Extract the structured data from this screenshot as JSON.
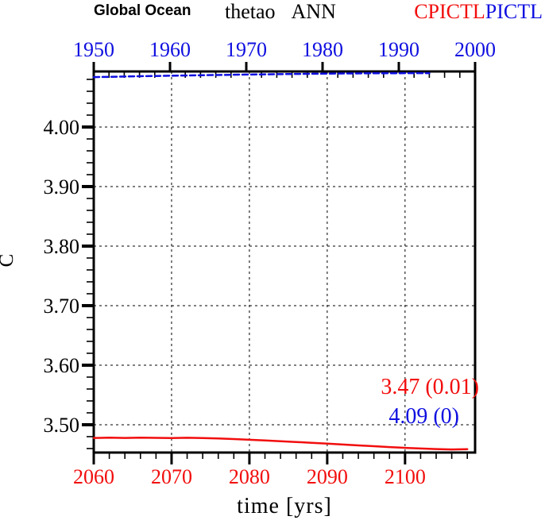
{
  "header": {
    "dataset_label": "Global Ocean",
    "variable": "thetao",
    "season": "ANN",
    "series_red": "CPICTL",
    "series_blue": "PICTL"
  },
  "axes": {
    "x_title": "time [yrs]",
    "y_title": "C"
  },
  "annotations": {
    "red_summary": "3.47 (0.01)",
    "blue_summary": "4.09 (0)"
  },
  "colors": {
    "red": "#f20d0d",
    "blue": "#0f0fe0",
    "frame": "#000000"
  },
  "chart_data": {
    "type": "line",
    "title": "Global Ocean thetao ANN CPICTL PICTL",
    "xlabel": "time [yrs]",
    "ylabel": "C",
    "ylim": [
      3.4533,
      4.0933
    ],
    "y_axis": {
      "ticks": [
        4.0,
        3.9,
        3.8,
        3.7,
        3.6,
        3.5
      ],
      "tick_labels": [
        "4.00",
        "3.90",
        "3.80",
        "3.70",
        "3.60",
        "3.50"
      ],
      "minor_step": 0.02,
      "minor_range": [
        3.46,
        4.08
      ]
    },
    "top_axis": {
      "lim": [
        1950,
        2000
      ],
      "ticks": [
        1950,
        1960,
        1970,
        1980,
        1990,
        2000
      ],
      "tick_labels": [
        "1950",
        "1960",
        "1970",
        "1980",
        "1990",
        "2000"
      ],
      "minor_step": 2,
      "color": "#0f0fe0"
    },
    "bottom_axis": {
      "lim": [
        2060,
        2109
      ],
      "ticks": [
        2060,
        2070,
        2080,
        2090,
        2100
      ],
      "tick_labels": [
        "2060",
        "2070",
        "2080",
        "2090",
        "2100"
      ],
      "minor_step": 2,
      "minor_max": 2108,
      "color": "#f20d0d"
    },
    "grid": {
      "horizontal_at": [
        4.0,
        3.9,
        3.8,
        3.7,
        3.6,
        3.5
      ],
      "vertical_at_bottom_years": [
        2070,
        2080,
        2090,
        2100
      ],
      "style": "dotted"
    },
    "series": [
      {
        "name": "CPICTL",
        "axis": "bottom",
        "color": "#f20d0d",
        "style": "solid",
        "final_stat_label": "3.47 (0.01)",
        "x": [
          2060,
          2062,
          2064,
          2066,
          2068,
          2070,
          2072,
          2074,
          2076,
          2078,
          2080,
          2082,
          2084,
          2086,
          2088,
          2090,
          2092,
          2094,
          2096,
          2098,
          2100,
          2102,
          2104,
          2106,
          2108
        ],
        "values": [
          3.4779,
          3.4782,
          3.4778,
          3.4783,
          3.478,
          3.4777,
          3.4781,
          3.4776,
          3.4769,
          3.4759,
          3.4748,
          3.4736,
          3.4723,
          3.471,
          3.4697,
          3.4683,
          3.4668,
          3.4653,
          3.4639,
          3.4625,
          3.4612,
          3.4601,
          3.4592,
          3.4585,
          3.4591
        ]
      },
      {
        "name": "PICTL",
        "axis": "top",
        "color": "#0f0fe0",
        "style": "dashed",
        "final_stat_label": "4.09 (0)",
        "x": [
          1950,
          1952,
          1954,
          1956,
          1958,
          1960,
          1962,
          1964,
          1966,
          1968,
          1970,
          1972,
          1974,
          1976,
          1978,
          1980,
          1982,
          1984,
          1986,
          1988,
          1990,
          1992,
          1994
        ],
        "values": [
          4.0838,
          4.0843,
          4.0848,
          4.0853,
          4.0857,
          4.0861,
          4.0865,
          4.0869,
          4.0873,
          4.0877,
          4.0881,
          4.0884,
          4.0887,
          4.089,
          4.0893,
          4.0896,
          4.0898,
          4.09,
          4.0902,
          4.0903,
          4.0904,
          4.0905,
          4.0905
        ]
      }
    ]
  }
}
